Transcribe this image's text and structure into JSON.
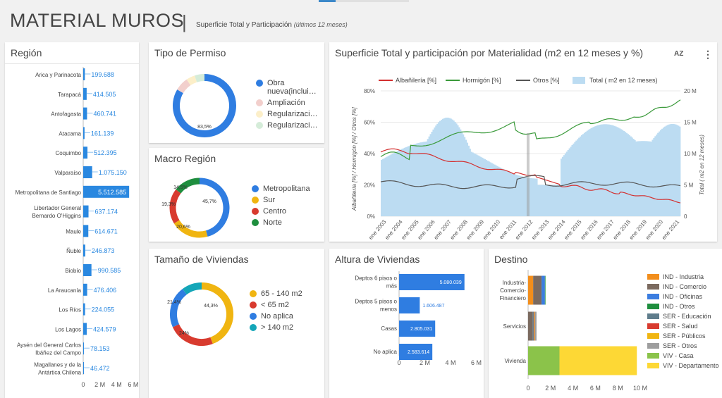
{
  "header": {
    "title": "MATERIAL MUROS",
    "separator": "|",
    "subtitle": "Superficie Total y Participación",
    "subtitle_note": "(últimos 12 meses)"
  },
  "region": {
    "title": "Región",
    "categories": [
      "Arica y Parinacota",
      "Tarapacá",
      "Antofagasta",
      "Atacama",
      "Coquimbo",
      "Valparaíso",
      "Metropolitana de Santiago",
      "Libertador General Bernardo O'Higgins",
      "Maule",
      "Ñuble",
      "Biobío",
      "La Araucanía",
      "Los Ríos",
      "Los Lagos",
      "Aysén del General Carlos Ibáñez del Campo",
      "Magallanes y de la Antártica Chilena"
    ],
    "labels": [
      "199.688",
      "414.505",
      "460.741",
      "161.139",
      "512.395",
      "1.075.150",
      "5.512.585",
      "637.174",
      "614.671",
      "246.873",
      "990.585",
      "476.406",
      "224.055",
      "424.579",
      "78.153",
      "46.472"
    ],
    "values": [
      199688,
      414505,
      460741,
      161139,
      512395,
      1075150,
      5512585,
      637174,
      614671,
      246873,
      990585,
      476406,
      224055,
      424579,
      78153,
      46472
    ],
    "xticks": [
      "0",
      "2 M",
      "4 M",
      "6 M"
    ],
    "color": "#2a88e0"
  },
  "permiso": {
    "title": "Tipo de Permiso",
    "legend": [
      "Obra nueva(inclui…",
      "Ampliación",
      "Regularizaci…",
      "Regularizaci…"
    ],
    "colors": [
      "#2f7de1",
      "#f2cfcc",
      "#fcefc9",
      "#d5ecd9"
    ],
    "values": [
      83.5,
      7,
      4.5,
      5
    ],
    "slice_labels": [
      "83,5%"
    ]
  },
  "macro": {
    "title": "Macro Región",
    "legend": [
      "Metropolitana",
      "Sur",
      "Centro",
      "Norte"
    ],
    "colors": [
      "#2f7de1",
      "#f0b511",
      "#d83b2f",
      "#1e8e3e"
    ],
    "values": [
      45.7,
      20.6,
      19.3,
      14.5
    ],
    "slice_labels": [
      "45,7%",
      "20,6%",
      "19,3%",
      "14,5%"
    ]
  },
  "tamano": {
    "title": "Tamaño de Viviendas",
    "legend": [
      "65 - 140 m2",
      "< 65 m2",
      "No aplica",
      "> 140 m2"
    ],
    "colors": [
      "#f0b511",
      "#d83b2f",
      "#2f7de1",
      "#14a6b8"
    ],
    "values": [
      44.3,
      24,
      21.4,
      10.3
    ],
    "slice_labels": [
      "44,3%",
      "24%",
      "21,4%",
      ""
    ]
  },
  "superficie": {
    "title": "Superficie Total y participación por Materialidad (m2 en 12 meses y %)",
    "sort_icon": "AZ",
    "menu_icon": "⋮",
    "legend": [
      "Albañilería [%]",
      "Hormigón [%]",
      "Otros [%]",
      "Total ( m2 en 12 meses)"
    ],
    "colors": [
      "#d32f2f",
      "#3a9a3a",
      "#555555",
      "#bcdcf2"
    ],
    "yleft_label": "Albañilería [%] / Hormigón [%] / Otros [%]",
    "yright_label": "Total ( m2 en 12 meses)",
    "yleft_ticks": [
      "0%",
      "20%",
      "40%",
      "60%",
      "80%"
    ],
    "yright_ticks": [
      "0",
      "5 M",
      "10 M",
      "15 M",
      "20 M"
    ],
    "xticks": [
      "ene 2003",
      "ene 2004",
      "ene 2005",
      "ene 2006",
      "ene 2007",
      "ene 2008",
      "ene 2009",
      "ene 2010",
      "ene 2011",
      "ene 2012",
      "ene 2013",
      "ene 2014",
      "ene 2015",
      "ene 2016",
      "ene 2017",
      "ene 2018",
      "ene 2019",
      "ene 2020",
      "ene 2021"
    ]
  },
  "altura": {
    "title": "Altura de Viviendas",
    "categories": [
      "Deptos 6 pisos o más",
      "Deptos 5 pisos o menos",
      "Casas",
      "No aplica"
    ],
    "labels": [
      "5.080.039",
      "1.606.487",
      "2.805.031",
      "2.583.614"
    ],
    "values": [
      5080039,
      1606487,
      2805031,
      2583614
    ],
    "xticks": [
      "0",
      "2 M",
      "4 M",
      "6 M"
    ],
    "color": "#2f7de1"
  },
  "destino": {
    "title": "Destino",
    "categories": [
      "Industria-Comercio-Financiero",
      "Servicios",
      "Vivienda"
    ],
    "xticks": [
      "0",
      "2 M",
      "4 M",
      "6 M",
      "8 M",
      "10 M"
    ],
    "series": [
      {
        "name": "IND - Industria",
        "color": "#f28e1c",
        "values": [
          0.45,
          0,
          0
        ]
      },
      {
        "name": "IND - Comercio",
        "color": "#7b6a5f",
        "values": [
          0.75,
          0.4,
          0
        ]
      },
      {
        "name": "IND - Oficinas",
        "color": "#3b7de0",
        "values": [
          0.3,
          0,
          0
        ]
      },
      {
        "name": "IND - Otros",
        "color": "#1e8e3e",
        "values": [
          0.05,
          0,
          0
        ]
      },
      {
        "name": "SER - Educación",
        "color": "#5f7d8c",
        "values": [
          0,
          0.1,
          0
        ]
      },
      {
        "name": "SER - Salud",
        "color": "#d83b2f",
        "values": [
          0,
          0.05,
          0
        ]
      },
      {
        "name": "SER - Públicos",
        "color": "#f0b511",
        "values": [
          0,
          0.05,
          0
        ]
      },
      {
        "name": "SER - Otros",
        "color": "#9e9e9e",
        "values": [
          0,
          0.15,
          0
        ]
      },
      {
        "name": "VIV - Casa",
        "color": "#8bc34a",
        "values": [
          0,
          0,
          2.8
        ]
      },
      {
        "name": "VIV - Departamento",
        "color": "#fdd835",
        "values": [
          0,
          0,
          6.9
        ]
      }
    ]
  }
}
